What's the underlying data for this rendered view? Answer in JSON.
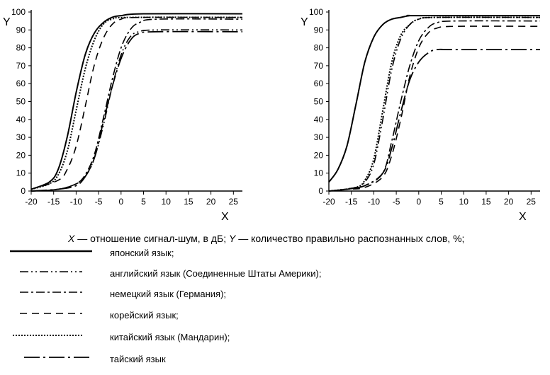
{
  "chart_data": [
    {
      "type": "line",
      "x_ticks": [
        -20,
        -15,
        -10,
        -5,
        0,
        5,
        10,
        15,
        20,
        25
      ],
      "y_ticks": [
        0,
        10,
        20,
        30,
        40,
        50,
        60,
        70,
        80,
        90,
        100
      ],
      "xlim": [
        -20,
        27
      ],
      "ylim": [
        0,
        100
      ],
      "xlabel": "X",
      "ylabel": "Y",
      "grid": false,
      "series": [
        {
          "name": "японский язык",
          "style": "solid",
          "points": [
            [
              -20,
              1
            ],
            [
              -16,
              5
            ],
            [
              -14,
              12
            ],
            [
              -12,
              30
            ],
            [
              -10,
              55
            ],
            [
              -8,
              76
            ],
            [
              -6,
              88
            ],
            [
              -4,
              94
            ],
            [
              -2,
              97
            ],
            [
              0,
              98
            ],
            [
              5,
              99
            ],
            [
              27,
              99
            ]
          ]
        },
        {
          "name": "английский язык (Соединенные Штаты Америки)",
          "style": "dash-dot-dot",
          "points": [
            [
              -20,
              0
            ],
            [
              -14,
              1
            ],
            [
              -10,
              4
            ],
            [
              -8,
              8
            ],
            [
              -6,
              18
            ],
            [
              -4,
              36
            ],
            [
              -2,
              58
            ],
            [
              0,
              76
            ],
            [
              2,
              86
            ],
            [
              4,
              89
            ],
            [
              8,
              90
            ],
            [
              27,
              90
            ]
          ]
        },
        {
          "name": "немецкий язык (Германия)",
          "style": "dash-dot",
          "points": [
            [
              -20,
              0
            ],
            [
              -14,
              1
            ],
            [
              -10,
              4
            ],
            [
              -8,
              9
            ],
            [
              -6,
              20
            ],
            [
              -4,
              40
            ],
            [
              -2,
              62
            ],
            [
              0,
              80
            ],
            [
              2,
              90
            ],
            [
              4,
              94
            ],
            [
              8,
              96
            ],
            [
              27,
              96
            ]
          ]
        },
        {
          "name": "корейский язык",
          "style": "dashed",
          "points": [
            [
              -20,
              1
            ],
            [
              -14,
              6
            ],
            [
              -12,
              12
            ],
            [
              -10,
              25
            ],
            [
              -8,
              47
            ],
            [
              -6,
              70
            ],
            [
              -4,
              85
            ],
            [
              -2,
              93
            ],
            [
              0,
              96
            ],
            [
              4,
              97
            ],
            [
              27,
              97
            ]
          ]
        },
        {
          "name": "китайский язык (Мандарин)",
          "style": "dotted",
          "points": [
            [
              -20,
              1
            ],
            [
              -16,
              4
            ],
            [
              -14,
              9
            ],
            [
              -12,
              22
            ],
            [
              -10,
              45
            ],
            [
              -8,
              68
            ],
            [
              -6,
              84
            ],
            [
              -4,
              93
            ],
            [
              -2,
              96
            ],
            [
              2,
              97
            ],
            [
              27,
              97
            ]
          ]
        },
        {
          "name": "тайский язык",
          "style": "long-dash-dot",
          "points": [
            [
              -20,
              0
            ],
            [
              -14,
              1
            ],
            [
              -10,
              3
            ],
            [
              -8,
              8
            ],
            [
              -6,
              18
            ],
            [
              -4,
              38
            ],
            [
              -2,
              58
            ],
            [
              0,
              74
            ],
            [
              2,
              84
            ],
            [
              4,
              88
            ],
            [
              8,
              89
            ],
            [
              27,
              89
            ]
          ]
        }
      ]
    },
    {
      "type": "line",
      "x_ticks": [
        -20,
        -15,
        -10,
        -5,
        0,
        5,
        10,
        15,
        20,
        25
      ],
      "y_ticks": [
        0,
        10,
        20,
        30,
        40,
        50,
        60,
        70,
        80,
        90,
        100
      ],
      "xlim": [
        -20,
        27
      ],
      "ylim": [
        0,
        100
      ],
      "xlabel": "X",
      "ylabel": "Y",
      "grid": false,
      "series": [
        {
          "name": "японский язык",
          "style": "solid",
          "points": [
            [
              -20,
              5
            ],
            [
              -18,
              12
            ],
            [
              -16,
              25
            ],
            [
              -14,
              48
            ],
            [
              -12,
              72
            ],
            [
              -10,
              86
            ],
            [
              -8,
              93
            ],
            [
              -6,
              96
            ],
            [
              -4,
              97
            ],
            [
              -2,
              98
            ],
            [
              0,
              98
            ],
            [
              27,
              98
            ]
          ]
        },
        {
          "name": "английский язык (Соединенные Штаты Америки)",
          "style": "dash-dot-dot",
          "points": [
            [
              -20,
              0
            ],
            [
              -14,
              2
            ],
            [
              -12,
              5
            ],
            [
              -10,
              15
            ],
            [
              -8,
              40
            ],
            [
              -6,
              68
            ],
            [
              -4,
              85
            ],
            [
              -2,
              93
            ],
            [
              0,
              96
            ],
            [
              4,
              97
            ],
            [
              27,
              97
            ]
          ]
        },
        {
          "name": "немецкий язык (Германия)",
          "style": "dash-dot",
          "points": [
            [
              -20,
              0
            ],
            [
              -16,
              1
            ],
            [
              -12,
              3
            ],
            [
              -8,
              10
            ],
            [
              -6,
              28
            ],
            [
              -4,
              50
            ],
            [
              -2,
              70
            ],
            [
              0,
              84
            ],
            [
              2,
              91
            ],
            [
              4,
              94
            ],
            [
              8,
              95
            ],
            [
              27,
              95
            ]
          ]
        },
        {
          "name": "корейский язык",
          "style": "dashed",
          "points": [
            [
              -20,
              0
            ],
            [
              -16,
              1
            ],
            [
              -12,
              2
            ],
            [
              -8,
              8
            ],
            [
              -6,
              20
            ],
            [
              -4,
              40
            ],
            [
              -2,
              64
            ],
            [
              0,
              80
            ],
            [
              2,
              88
            ],
            [
              4,
              91
            ],
            [
              8,
              92
            ],
            [
              27,
              92
            ]
          ]
        },
        {
          "name": "китайский язык (Мандарин)",
          "style": "dotted",
          "points": [
            [
              -20,
              0
            ],
            [
              -14,
              2
            ],
            [
              -12,
              6
            ],
            [
              -10,
              18
            ],
            [
              -8,
              45
            ],
            [
              -6,
              72
            ],
            [
              -4,
              87
            ],
            [
              -2,
              93
            ],
            [
              0,
              96
            ],
            [
              4,
              97
            ],
            [
              27,
              97
            ]
          ]
        },
        {
          "name": "тайский язык",
          "style": "long-dash-dot",
          "points": [
            [
              -20,
              0
            ],
            [
              -16,
              1
            ],
            [
              -12,
              3
            ],
            [
              -8,
              10
            ],
            [
              -6,
              24
            ],
            [
              -4,
              44
            ],
            [
              -2,
              62
            ],
            [
              0,
              72
            ],
            [
              2,
              77
            ],
            [
              4,
              79
            ],
            [
              8,
              79
            ],
            [
              27,
              79
            ]
          ]
        }
      ]
    }
  ],
  "caption": {
    "x_symbol": "X",
    "x_text": " — отношение сигнал-шум, в дБ; ",
    "y_symbol": "Y",
    "y_text": " — количество правильно распознанных слов, %;"
  },
  "legend": [
    {
      "label": "японский язык;",
      "style": "solid"
    },
    {
      "label": "английский язык (Соединенные Штаты Америки);",
      "style": "dash-dot-dot"
    },
    {
      "label": "немецкий язык (Германия);",
      "style": "dash-dot"
    },
    {
      "label": "корейский язык;",
      "style": "dashed"
    },
    {
      "label": "китайский язык (Мандарин);",
      "style": "dotted"
    },
    {
      "label": "тайский язык",
      "style": "long-dash-dot"
    }
  ]
}
